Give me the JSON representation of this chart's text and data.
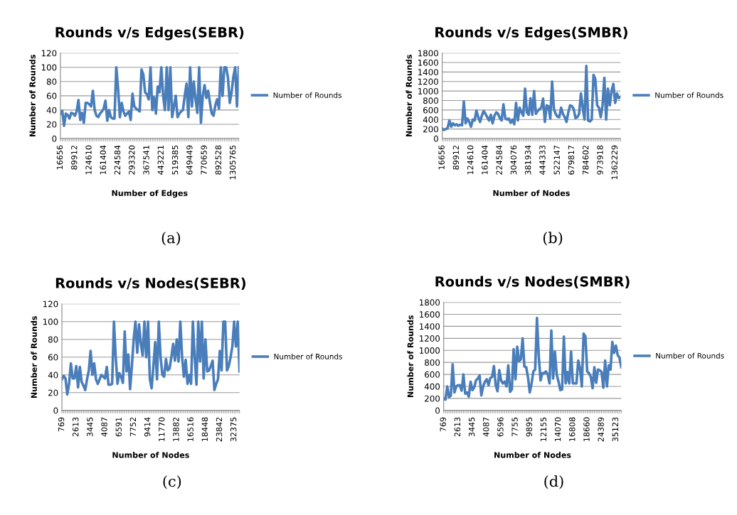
{
  "chart_data": [
    {
      "type": "line",
      "title": "Rounds v/s Edges(SEBR)",
      "xlabel": "Number of Edges",
      "ylabel": "Number of Rounds",
      "ylim": [
        0,
        120
      ],
      "yticks": [
        0,
        20,
        40,
        60,
        80,
        100,
        120
      ],
      "grid": "y",
      "legend": "right",
      "annotations": [
        "(a)"
      ],
      "categories": [
        "16656",
        null,
        null,
        null,
        null,
        null,
        null,
        null,
        "89912",
        null,
        null,
        null,
        null,
        null,
        null,
        null,
        "124610",
        null,
        null,
        null,
        null,
        null,
        null,
        null,
        "161404",
        null,
        null,
        null,
        null,
        null,
        null,
        null,
        "224584",
        null,
        null,
        null,
        null,
        null,
        null,
        null,
        "293320",
        null,
        null,
        null,
        null,
        null,
        null,
        null,
        "367541",
        null,
        null,
        null,
        null,
        null,
        null,
        null,
        "443221",
        null,
        null,
        null,
        null,
        null,
        null,
        null,
        "519385",
        null,
        null,
        null,
        null,
        null,
        null,
        null,
        "649449",
        null,
        null,
        null,
        null,
        null,
        null,
        null,
        "770659",
        null,
        null,
        null,
        null,
        null,
        null,
        null,
        "892528",
        null,
        null,
        null,
        null,
        null,
        null,
        null,
        "1305765",
        null,
        null,
        null
      ],
      "series": [
        {
          "name": "Number of Rounds",
          "color": "#4a7ebb",
          "values": [
            35,
            39,
            18,
            35,
            33,
            28,
            36,
            35,
            32,
            38,
            54,
            26,
            36,
            22,
            50,
            50,
            48,
            45,
            67,
            40,
            32,
            30,
            35,
            38,
            42,
            53,
            25,
            40,
            30,
            28,
            28,
            100,
            70,
            30,
            50,
            38,
            32,
            35,
            38,
            26,
            63,
            45,
            42,
            40,
            38,
            97,
            90,
            65,
            62,
            55,
            100,
            40,
            58,
            35,
            73,
            65,
            100,
            60,
            40,
            100,
            40,
            100,
            30,
            45,
            60,
            30,
            35,
            38,
            40,
            60,
            77,
            30,
            100,
            45,
            80,
            55,
            36,
            100,
            22,
            60,
            75,
            57,
            67,
            50,
            35,
            32,
            47,
            55,
            42,
            100,
            60,
            100,
            100,
            85,
            50,
            65,
            87,
            100,
            45,
            100
          ]
        }
      ]
    },
    {
      "type": "line",
      "title": "Rounds v/s Edges(SMBR)",
      "xlabel": "Number of Nodes",
      "ylabel": "Number of Rounds",
      "ylim": [
        0,
        1800
      ],
      "yticks": [
        0,
        200,
        400,
        600,
        800,
        1000,
        1200,
        1400,
        1600,
        1800
      ],
      "grid": "y",
      "legend": "right",
      "annotations": [
        "(b)"
      ],
      "categories": [
        "16656",
        null,
        null,
        null,
        null,
        null,
        null,
        null,
        "89912",
        null,
        null,
        null,
        null,
        null,
        null,
        null,
        "124610",
        null,
        null,
        null,
        null,
        null,
        null,
        null,
        "161404",
        null,
        null,
        null,
        null,
        null,
        null,
        null,
        "224584",
        null,
        null,
        null,
        null,
        null,
        null,
        null,
        "304076",
        null,
        null,
        null,
        null,
        null,
        null,
        null,
        "381934",
        null,
        null,
        null,
        null,
        null,
        null,
        null,
        "444333",
        null,
        null,
        null,
        null,
        null,
        null,
        null,
        "522147",
        null,
        null,
        null,
        null,
        null,
        null,
        null,
        "679817",
        null,
        null,
        null,
        null,
        null,
        null,
        null,
        "784602",
        null,
        null,
        null,
        null,
        null,
        null,
        null,
        "973918",
        null,
        null,
        null,
        null,
        null,
        null,
        null,
        "1362229",
        null,
        null,
        null
      ],
      "series": [
        {
          "name": "Number of Rounds",
          "color": "#4a7ebb",
          "values": [
            210,
            180,
            200,
            220,
            380,
            250,
            320,
            280,
            300,
            270,
            290,
            280,
            780,
            320,
            420,
            350,
            250,
            400,
            380,
            590,
            450,
            350,
            480,
            580,
            520,
            450,
            380,
            500,
            320,
            480,
            550,
            520,
            430,
            380,
            720,
            430,
            400,
            420,
            330,
            400,
            300,
            750,
            380,
            650,
            550,
            480,
            1050,
            550,
            500,
            850,
            500,
            1000,
            520,
            580,
            620,
            650,
            840,
            350,
            700,
            680,
            420,
            1200,
            620,
            520,
            460,
            450,
            650,
            520,
            450,
            350,
            550,
            700,
            680,
            620,
            430,
            450,
            520,
            950,
            650,
            400,
            1530,
            380,
            360,
            400,
            1340,
            1250,
            700,
            650,
            450,
            700,
            1280,
            400,
            1050,
            700,
            1000,
            1150,
            750,
            950,
            850,
            880
          ]
        }
      ]
    },
    {
      "type": "line",
      "title": "Rounds v/s Nodes(SEBR)",
      "xlabel": "Number of Nodes",
      "ylabel": "Number of Rounds",
      "ylim": [
        0,
        120
      ],
      "yticks": [
        0,
        20,
        40,
        60,
        80,
        100,
        120
      ],
      "grid": "y",
      "legend": "right",
      "annotations": [
        "(c)"
      ],
      "categories": [
        "769",
        null,
        null,
        null,
        null,
        null,
        null,
        null,
        "2613",
        null,
        null,
        null,
        null,
        null,
        null,
        null,
        "3445",
        null,
        null,
        null,
        null,
        null,
        null,
        null,
        "4087",
        null,
        null,
        null,
        null,
        null,
        null,
        null,
        "6591",
        null,
        null,
        null,
        null,
        null,
        null,
        null,
        "7752",
        null,
        null,
        null,
        null,
        null,
        null,
        null,
        "9414",
        null,
        null,
        null,
        null,
        null,
        null,
        null,
        "11770",
        null,
        null,
        null,
        null,
        null,
        null,
        null,
        "13882",
        null,
        null,
        null,
        null,
        null,
        null,
        null,
        "16516",
        null,
        null,
        null,
        null,
        null,
        null,
        null,
        "18448",
        null,
        null,
        null,
        null,
        null,
        null,
        null,
        "23842",
        null,
        null,
        null,
        null,
        null,
        null,
        null,
        "32375",
        null,
        null,
        null
      ],
      "series": [
        {
          "name": "Number of Rounds",
          "color": "#4a7ebb",
          "values": [
            35,
            39,
            36,
            18,
            30,
            53,
            36,
            36,
            50,
            26,
            49,
            32,
            28,
            23,
            35,
            45,
            67,
            40,
            53,
            35,
            30,
            35,
            40,
            38,
            36,
            49,
            29,
            29,
            30,
            100,
            60,
            30,
            42,
            38,
            31,
            89,
            44,
            63,
            24,
            50,
            80,
            100,
            65,
            97,
            75,
            62,
            100,
            60,
            100,
            36,
            25,
            50,
            77,
            35,
            100,
            60,
            40,
            38,
            58,
            45,
            47,
            60,
            75,
            56,
            80,
            55,
            100,
            60,
            38,
            57,
            30,
            40,
            30,
            100,
            60,
            29,
            100,
            55,
            100,
            36,
            80,
            44,
            45,
            50,
            56,
            23,
            30,
            35,
            67,
            45,
            100,
            100,
            45,
            50,
            60,
            72,
            100,
            72,
            100,
            44
          ]
        }
      ]
    },
    {
      "type": "line",
      "title": "Rounds v/s Nodes(SMBR)",
      "xlabel": "Number of Nodes",
      "ylabel": "Number of Rounds",
      "ylim": [
        0,
        1800
      ],
      "yticks": [
        0,
        200,
        400,
        600,
        800,
        1000,
        1200,
        1400,
        1600,
        1800
      ],
      "grid": "y",
      "legend": "right",
      "annotations": [
        "(d)"
      ],
      "categories": [
        "769",
        null,
        null,
        null,
        null,
        null,
        null,
        null,
        "2613",
        null,
        null,
        null,
        null,
        null,
        null,
        null,
        "3445",
        null,
        null,
        null,
        null,
        null,
        null,
        null,
        "4087",
        null,
        null,
        null,
        null,
        null,
        null,
        null,
        "6596",
        null,
        null,
        null,
        null,
        null,
        null,
        null,
        "7755",
        null,
        null,
        null,
        null,
        null,
        null,
        null,
        "9895",
        null,
        null,
        null,
        null,
        null,
        null,
        null,
        "12155",
        null,
        null,
        null,
        null,
        null,
        null,
        null,
        "14070",
        null,
        null,
        null,
        null,
        null,
        null,
        null,
        "16808",
        null,
        null,
        null,
        null,
        null,
        null,
        null,
        "18660",
        null,
        null,
        null,
        null,
        null,
        null,
        null,
        "24389",
        null,
        null,
        null,
        null,
        null,
        null,
        null,
        "35123",
        null,
        null,
        null
      ],
      "series": [
        {
          "name": "Number of Rounds",
          "color": "#4a7ebb",
          "values": [
            200,
            180,
            400,
            220,
            250,
            770,
            300,
            400,
            420,
            420,
            330,
            600,
            280,
            300,
            230,
            480,
            340,
            380,
            500,
            530,
            580,
            250,
            400,
            480,
            520,
            420,
            540,
            560,
            740,
            420,
            320,
            670,
            500,
            450,
            480,
            400,
            750,
            310,
            350,
            1020,
            520,
            1060,
            820,
            850,
            1200,
            730,
            720,
            550,
            300,
            450,
            650,
            680,
            1540,
            900,
            500,
            620,
            620,
            650,
            600,
            450,
            1330,
            530,
            980,
            600,
            480,
            340,
            350,
            1230,
            450,
            640,
            450,
            980,
            450,
            450,
            450,
            830,
            700,
            400,
            1280,
            1230,
            650,
            620,
            560,
            370,
            720,
            460,
            680,
            670,
            640,
            380,
            830,
            400,
            750,
            680,
            1140,
            960,
            1080,
            920,
            880,
            720
          ]
        }
      ]
    }
  ]
}
